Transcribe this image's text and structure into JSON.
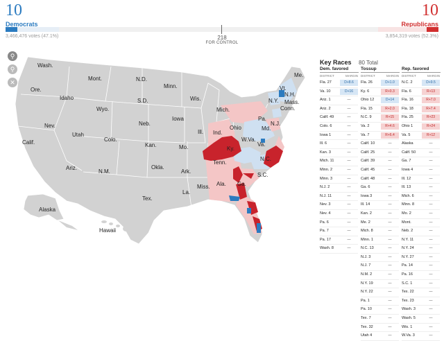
{
  "header": {
    "dem_count": "10",
    "dem_label": "Democrats",
    "dem_votes": "3,466,476 votes (47.1%)",
    "rep_count": "10",
    "rep_label": "Republicans",
    "rep_votes": "3,854,319 votes (52.3%)",
    "control_number": "218",
    "control_label": "FOR CONTROL"
  },
  "colors": {
    "dem": "#2b7bc0",
    "rep": "#d12f2f",
    "map_gray": "#d2d2d2",
    "light_red": "#f4c6c6",
    "light_blue": "#cfe0f1"
  },
  "map_controls": [
    "zoom-in-icon",
    "zoom-out-icon",
    "reset-icon"
  ],
  "map_labels": {
    "wash": "Wash.",
    "mont": "Mont.",
    "nd": "N.D.",
    "minn": "Minn.",
    "me": "Me.",
    "ore": "Ore.",
    "idaho": "Idaho",
    "wyo": "Wyo.",
    "sd": "S.D.",
    "wis": "Wis.",
    "mich": "Mich.",
    "vt": "Vt.",
    "nh": "N.H.",
    "ny": "N.Y.",
    "mass": "Mass.",
    "conn": "Conn.",
    "nev": "Nev.",
    "utah": "Utah",
    "colo": "Colo.",
    "neb": "Neb.",
    "iowa": "Iowa",
    "ill": "Ill.",
    "ind": "Ind.",
    "ohio": "Ohio",
    "pa": "Pa.",
    "nj": "N.J.",
    "md": "Md.",
    "calif": "Calif.",
    "kan": "Kan.",
    "mo": "Mo.",
    "ky": "Ky.",
    "wva": "W.Va.",
    "va": "Va.",
    "ariz": "Ariz.",
    "nm": "N.M.",
    "okla": "Okla.",
    "ark": "Ark.",
    "tenn": "Tenn.",
    "nc": "N.C.",
    "tex": "Tex.",
    "la": "La.",
    "miss": "Miss.",
    "ala": "Ala.",
    "ga": "Ga.",
    "sc": "S.C.",
    "alaska": "Alaska",
    "hawaii": "Hawaii"
  },
  "key_races": {
    "title": "Key Races",
    "total": "80 Total",
    "col_district": "DISTRICT",
    "col_margin": "MARGIN",
    "dem_favored": {
      "heading": "Dem. favored",
      "rows": [
        {
          "d": "Fla. 27",
          "m": "D+8.6",
          "c": "b"
        },
        {
          "d": "Va. 10",
          "m": "D+16",
          "c": "b"
        },
        {
          "d": "Ariz. 1",
          "m": "—",
          "c": "n"
        },
        {
          "d": "Ariz. 2",
          "m": "—",
          "c": "n"
        },
        {
          "d": "Calif. 49",
          "m": "—",
          "c": "n"
        },
        {
          "d": "Colo. 6",
          "m": "—",
          "c": "n"
        },
        {
          "d": "Iowa 1",
          "m": "—",
          "c": "n"
        },
        {
          "d": "Ill. 6",
          "m": "—",
          "c": "n"
        },
        {
          "d": "Kan. 3",
          "m": "—",
          "c": "n"
        },
        {
          "d": "Mich. 11",
          "m": "—",
          "c": "n"
        },
        {
          "d": "Minn. 2",
          "m": "—",
          "c": "n"
        },
        {
          "d": "Minn. 3",
          "m": "—",
          "c": "n"
        },
        {
          "d": "N.J. 2",
          "m": "—",
          "c": "n"
        },
        {
          "d": "N.J. 11",
          "m": "—",
          "c": "n"
        },
        {
          "d": "Nev. 3",
          "m": "—",
          "c": "n"
        },
        {
          "d": "Nev. 4",
          "m": "—",
          "c": "n"
        },
        {
          "d": "Pa. 6",
          "m": "—",
          "c": "n"
        },
        {
          "d": "Pa. 7",
          "m": "—",
          "c": "n"
        },
        {
          "d": "Pa. 17",
          "m": "—",
          "c": "n"
        },
        {
          "d": "Wash. 8",
          "m": "—",
          "c": "n"
        }
      ]
    },
    "tossup": {
      "heading": "Tossup",
      "rows": [
        {
          "d": "Fla. 26",
          "m": "D+1.0",
          "c": "b"
        },
        {
          "d": "Ky. 6",
          "m": "R+0.3",
          "c": "rr"
        },
        {
          "d": "Ohio 12",
          "m": "D+14",
          "c": "b"
        },
        {
          "d": "Fla. 15",
          "m": "R+2.0",
          "c": "rr"
        },
        {
          "d": "N.C. 9",
          "m": "R+15",
          "c": "rr"
        },
        {
          "d": "Va. 2",
          "m": "R+4.6",
          "c": "rr"
        },
        {
          "d": "Va. 7",
          "m": "R+6.4",
          "c": "rr"
        },
        {
          "d": "Calif. 10",
          "m": "—",
          "c": "n"
        },
        {
          "d": "Calif. 25",
          "m": "—",
          "c": "n"
        },
        {
          "d": "Calif. 39",
          "m": "—",
          "c": "n"
        },
        {
          "d": "Calif. 45",
          "m": "—",
          "c": "n"
        },
        {
          "d": "Calif. 48",
          "m": "—",
          "c": "n"
        },
        {
          "d": "Ga. 6",
          "m": "—",
          "c": "n"
        },
        {
          "d": "Iowa 3",
          "m": "—",
          "c": "n"
        },
        {
          "d": "Ill. 14",
          "m": "—",
          "c": "n"
        },
        {
          "d": "Kan. 2",
          "m": "—",
          "c": "n"
        },
        {
          "d": "Me. 2",
          "m": "—",
          "c": "n"
        },
        {
          "d": "Mich. 8",
          "m": "—",
          "c": "n"
        },
        {
          "d": "Minn. 1",
          "m": "—",
          "c": "n"
        },
        {
          "d": "N.C. 13",
          "m": "—",
          "c": "n"
        },
        {
          "d": "N.J. 3",
          "m": "—",
          "c": "n"
        },
        {
          "d": "N.J. 7",
          "m": "—",
          "c": "n"
        },
        {
          "d": "N.M. 2",
          "m": "—",
          "c": "n"
        },
        {
          "d": "N.Y. 19",
          "m": "—",
          "c": "n"
        },
        {
          "d": "N.Y. 22",
          "m": "—",
          "c": "n"
        },
        {
          "d": "Pa. 1",
          "m": "—",
          "c": "n"
        },
        {
          "d": "Pa. 10",
          "m": "—",
          "c": "n"
        },
        {
          "d": "Tex. 7",
          "m": "—",
          "c": "n"
        },
        {
          "d": "Tex. 32",
          "m": "—",
          "c": "n"
        },
        {
          "d": "Utah 4",
          "m": "—",
          "c": "n"
        }
      ]
    },
    "rep_favored": {
      "heading": "Rep. favored",
      "rows": [
        {
          "d": "N.C. 2",
          "m": "D+9.5",
          "c": "b"
        },
        {
          "d": "Fla. 6",
          "m": "R+13",
          "c": "rr"
        },
        {
          "d": "Fla. 16",
          "m": "R+7.0",
          "c": "rr"
        },
        {
          "d": "Fla. 18",
          "m": "R+7.4",
          "c": "rr"
        },
        {
          "d": "Fla. 25",
          "m": "R+23",
          "c": "rr"
        },
        {
          "d": "Ohio 1",
          "m": "R+24",
          "c": "rr"
        },
        {
          "d": "Va. 5",
          "m": "R+12",
          "c": "rr"
        },
        {
          "d": "Alaska",
          "m": "—",
          "c": "n"
        },
        {
          "d": "Calif. 50",
          "m": "—",
          "c": "n"
        },
        {
          "d": "Ga. 7",
          "m": "—",
          "c": "n"
        },
        {
          "d": "Iowa 4",
          "m": "—",
          "c": "n"
        },
        {
          "d": "Ill. 12",
          "m": "—",
          "c": "n"
        },
        {
          "d": "Ill. 13",
          "m": "—",
          "c": "n"
        },
        {
          "d": "Mich. 6",
          "m": "—",
          "c": "n"
        },
        {
          "d": "Minn. 8",
          "m": "—",
          "c": "n"
        },
        {
          "d": "Mo. 2",
          "m": "—",
          "c": "n"
        },
        {
          "d": "Mont.",
          "m": "—",
          "c": "n"
        },
        {
          "d": "Neb. 2",
          "m": "—",
          "c": "n"
        },
        {
          "d": "N.Y. 11",
          "m": "—",
          "c": "n"
        },
        {
          "d": "N.Y. 24",
          "m": "—",
          "c": "n"
        },
        {
          "d": "N.Y. 27",
          "m": "—",
          "c": "n"
        },
        {
          "d": "Pa. 14",
          "m": "—",
          "c": "n"
        },
        {
          "d": "Pa. 16",
          "m": "—",
          "c": "n"
        },
        {
          "d": "S.C. 1",
          "m": "—",
          "c": "n"
        },
        {
          "d": "Tex. 22",
          "m": "—",
          "c": "n"
        },
        {
          "d": "Tex. 23",
          "m": "—",
          "c": "n"
        },
        {
          "d": "Wash. 3",
          "m": "—",
          "c": "n"
        },
        {
          "d": "Wash. 5",
          "m": "—",
          "c": "n"
        },
        {
          "d": "Wis. 1",
          "m": "—",
          "c": "n"
        },
        {
          "d": "W.Va. 3",
          "m": "—",
          "c": "n"
        }
      ]
    }
  }
}
